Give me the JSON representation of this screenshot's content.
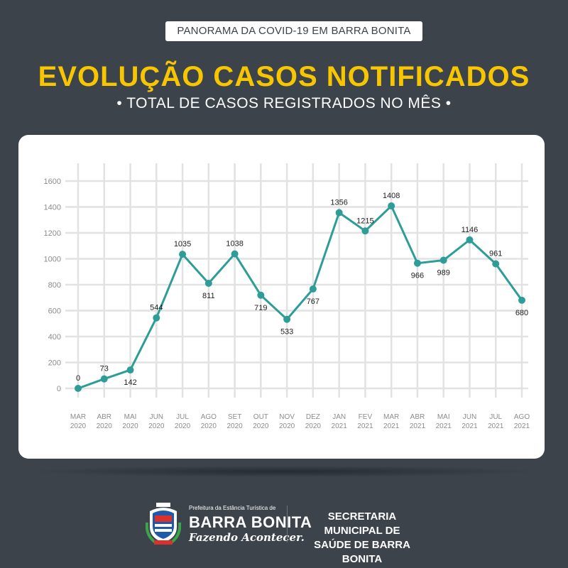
{
  "header": {
    "pill_text": "PANORAMA DA COVID-19 EM BARRA BONITA",
    "title": "EVOLUÇÃO CASOS NOTIFICADOS",
    "subtitle": "• TOTAL DE CASOS REGISTRADOS NO MÊS •"
  },
  "chart_data": {
    "type": "line",
    "title": "EVOLUÇÃO CASOS NOTIFICADOS",
    "subtitle": "TOTAL DE CASOS REGISTRADOS NO MÊS",
    "ylim": [
      0,
      1600
    ],
    "yticks": [
      0,
      200,
      400,
      600,
      800,
      1000,
      1200,
      1400,
      1600
    ],
    "grid": true,
    "line_color": "#2e9d97",
    "categories": [
      {
        "month": "MAR",
        "year": "2020"
      },
      {
        "month": "ABR",
        "year": "2020"
      },
      {
        "month": "MAI",
        "year": "2020"
      },
      {
        "month": "JUN",
        "year": "2020"
      },
      {
        "month": "JUL",
        "year": "2020"
      },
      {
        "month": "AGO",
        "year": "2020"
      },
      {
        "month": "SET",
        "year": "2020"
      },
      {
        "month": "OUT",
        "year": "2020"
      },
      {
        "month": "NOV",
        "year": "2020"
      },
      {
        "month": "DEZ",
        "year": "2020"
      },
      {
        "month": "JAN",
        "year": "2021"
      },
      {
        "month": "FEV",
        "year": "2021"
      },
      {
        "month": "MAR",
        "year": "2021"
      },
      {
        "month": "ABR",
        "year": "2021"
      },
      {
        "month": "MAI",
        "year": "2021"
      },
      {
        "month": "JUN",
        "year": "2021"
      },
      {
        "month": "JUL",
        "year": "2021"
      },
      {
        "month": "AGO",
        "year": "2021"
      }
    ],
    "values": [
      0,
      73,
      142,
      544,
      1035,
      811,
      1038,
      719,
      533,
      767,
      1356,
      1215,
      1408,
      966,
      989,
      1146,
      961,
      680
    ],
    "label_positions": [
      "above",
      "above",
      "below",
      "above",
      "above",
      "below",
      "above",
      "below",
      "below",
      "below",
      "above",
      "above",
      "above",
      "below",
      "below",
      "above",
      "above",
      "below"
    ]
  },
  "footer": {
    "prefeitura": "Prefeitura da Estância Turística de",
    "city": "BARRA BONITA",
    "slogan": "Fazendo Acontecer.",
    "secretaria_line1": "SECRETARIA MUNICIPAL DE",
    "secretaria_line2": "SAÚDE DE BARRA BONITA"
  }
}
